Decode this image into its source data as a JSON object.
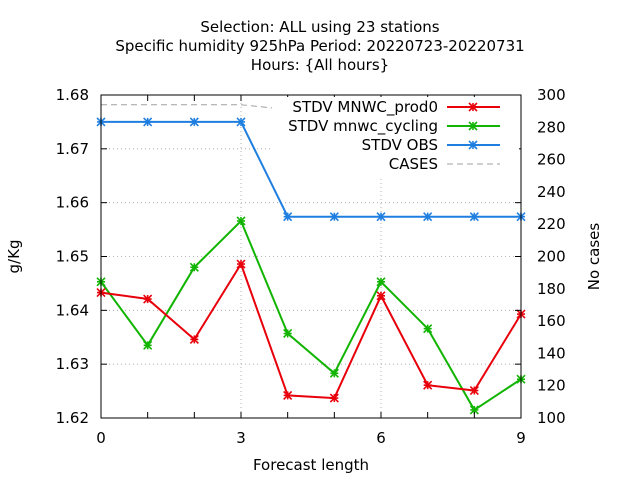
{
  "chart_data": {
    "type": "line",
    "title_lines": [
      "Selection: ALL using    23 stations",
      "Specific humidity 925hPa   Period: 20220723-20220731",
      "Hours: {All hours}"
    ],
    "xlabel": "Forecast length",
    "ylabel": "g/Kg",
    "y2label": "No cases",
    "x": [
      0,
      1,
      2,
      3,
      4,
      5,
      6,
      7,
      8,
      9
    ],
    "xlim": [
      0,
      9
    ],
    "x_ticks": [
      0,
      3,
      6,
      9
    ],
    "ylim": [
      1.62,
      1.68
    ],
    "y_ticks": [
      1.62,
      1.63,
      1.64,
      1.65,
      1.66,
      1.67,
      1.68
    ],
    "y2lim": [
      100,
      300
    ],
    "y2_ticks": [
      100,
      120,
      140,
      160,
      180,
      200,
      220,
      240,
      260,
      280,
      300
    ],
    "grid": true,
    "legend_position": "top-right",
    "series": [
      {
        "name": "STDV MNWC_prod0",
        "color": "#e8000b",
        "axis": "y",
        "marker": "x",
        "values": [
          1.6433,
          1.6421,
          1.6346,
          1.6486,
          1.6242,
          1.6237,
          1.6427,
          1.6261,
          1.6251,
          1.6393
        ]
      },
      {
        "name": "STDV mnwc_cycling",
        "color": "#11b400",
        "axis": "y",
        "marker": "x",
        "values": [
          1.6453,
          1.6335,
          1.648,
          1.6566,
          1.6357,
          1.6283,
          1.6453,
          1.6366,
          1.6215,
          1.6272
        ]
      },
      {
        "name": "STDV OBS",
        "color": "#1f7fe0",
        "axis": "y",
        "marker": "x",
        "values": [
          1.675,
          1.675,
          1.675,
          1.675,
          1.6574,
          1.6574,
          1.6574,
          1.6574,
          1.6574,
          1.6574
        ]
      },
      {
        "name": "CASES",
        "color": "#a0a0a0",
        "axis": "y2",
        "marker": "none",
        "dash": true,
        "values": [
          294,
          294,
          294,
          294,
          291,
          290,
          290,
          289,
          289,
          289
        ]
      }
    ]
  }
}
